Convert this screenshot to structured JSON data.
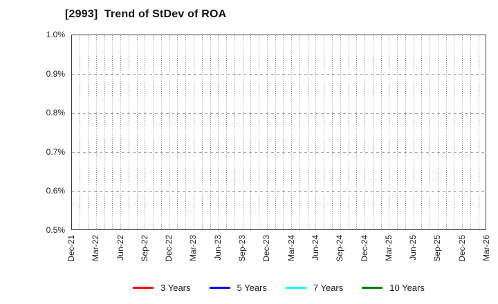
{
  "title": "[2993]  Trend of StDev of ROA",
  "chart_data": {
    "type": "line",
    "title": "[2993]  Trend of StDev of ROA",
    "x_tick_labels": [
      "Dec-21",
      "Mar-22",
      "Jun-22",
      "Sep-22",
      "Dec-22",
      "Mar-23",
      "Jun-23",
      "Sep-23",
      "Dec-23",
      "Mar-24",
      "Jun-24",
      "Sep-24",
      "Dec-24",
      "Mar-25",
      "Jun-25",
      "Sep-25",
      "Dec-25",
      "Mar-26"
    ],
    "months_per_tick": 3,
    "y_tick_labels": [
      "1.0%",
      "0.9%",
      "0.8%",
      "0.7%",
      "0.6%",
      "0.5%"
    ],
    "ylim": [
      0.5,
      1.0
    ],
    "y_unit": "%",
    "grid": true,
    "legend_position": "bottom",
    "series": [
      {
        "name": "3 Years",
        "color": "#ff0000",
        "values": []
      },
      {
        "name": "5 Years",
        "color": "#0000ff",
        "values": []
      },
      {
        "name": "7 Years",
        "color": "#00ffff",
        "values": []
      },
      {
        "name": "10 Years",
        "color": "#008000",
        "values": []
      }
    ]
  }
}
